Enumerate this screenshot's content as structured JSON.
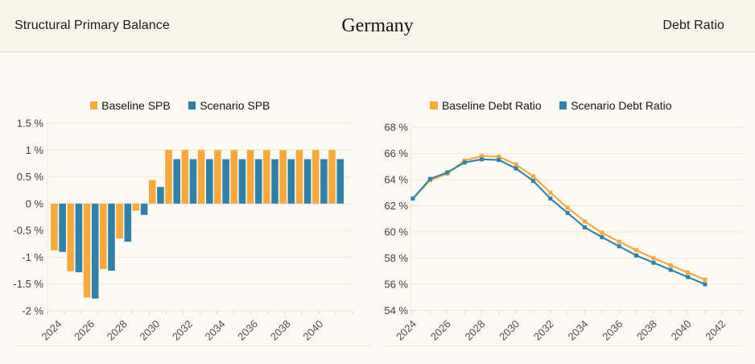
{
  "header": {
    "left_title": "Structural Primary Balance",
    "center_title": "Germany",
    "right_title": "Debt Ratio"
  },
  "palette": {
    "baseline": "#F8A93A",
    "scenario": "#2F81AA",
    "background": "#FDFAF3",
    "header_background": "#FAF4EB",
    "divider": "#DBD7CB",
    "grid": "#EBE7DA",
    "axis_text": "#3D3D3D",
    "tick_text": "#4D4D4D",
    "legend_text": "#141414"
  },
  "chart_data": [
    {
      "type": "bar",
      "title": "Structural Primary Balance",
      "categories": [
        2024,
        2025,
        2026,
        2027,
        2028,
        2029,
        2030,
        2031,
        2032,
        2033,
        2034,
        2035,
        2036,
        2037,
        2038,
        2039,
        2040,
        2041
      ],
      "series": [
        {
          "name": "Baseline SPB",
          "color_key": "baseline",
          "values": [
            -0.87,
            -1.26,
            -1.75,
            -1.22,
            -0.65,
            -0.13,
            0.44,
            1.0,
            1.0,
            1.0,
            1.0,
            1.0,
            1.0,
            1.0,
            1.0,
            1.0,
            1.0,
            1.0
          ]
        },
        {
          "name": "Scenario SPB",
          "color_key": "scenario",
          "values": [
            -0.9,
            -1.28,
            -1.77,
            -1.25,
            -0.71,
            -0.21,
            0.31,
            0.83,
            0.83,
            0.83,
            0.83,
            0.83,
            0.83,
            0.83,
            0.83,
            0.83,
            0.83,
            0.83
          ]
        }
      ],
      "ylim": [
        -2,
        1.5
      ],
      "yticks": [
        {
          "v": 1.5,
          "label": "1.5 %"
        },
        {
          "v": 1,
          "label": "1 %"
        },
        {
          "v": 0.5,
          "label": "0.5 %"
        },
        {
          "v": 0,
          "label": "0 %"
        },
        {
          "v": -0.5,
          "label": "-0.5 %"
        },
        {
          "v": -1,
          "label": "-1 %"
        },
        {
          "v": -1.5,
          "label": "-1.5 %"
        },
        {
          "v": -2,
          "label": "-2 %"
        }
      ],
      "xticks": [
        {
          "v": 2024,
          "label": "2024"
        },
        {
          "v": 2026,
          "label": "2026"
        },
        {
          "v": 2028,
          "label": "2028"
        },
        {
          "v": 2030,
          "label": "2030"
        },
        {
          "v": 2032,
          "label": "2032"
        },
        {
          "v": 2034,
          "label": "2034"
        },
        {
          "v": 2036,
          "label": "2036"
        },
        {
          "v": 2038,
          "label": "2038"
        },
        {
          "v": 2040,
          "label": "2040"
        }
      ],
      "grid": true,
      "legend_position": "top"
    },
    {
      "type": "line",
      "title": "Debt Ratio",
      "x": [
        2024,
        2025,
        2026,
        2027,
        2028,
        2029,
        2030,
        2031,
        2032,
        2033,
        2034,
        2035,
        2036,
        2037,
        2038,
        2039,
        2040,
        2041
      ],
      "series": [
        {
          "name": "Baseline Debt Ratio",
          "color_key": "baseline",
          "values": [
            62.55,
            63.95,
            64.45,
            65.45,
            65.8,
            65.75,
            65.15,
            64.25,
            63.0,
            61.85,
            60.8,
            59.95,
            59.25,
            58.6,
            58.0,
            57.45,
            56.9,
            56.35
          ]
        },
        {
          "name": "Scenario Debt Ratio",
          "color_key": "scenario",
          "values": [
            62.55,
            64.05,
            64.55,
            65.3,
            65.55,
            65.5,
            64.85,
            63.9,
            62.55,
            61.45,
            60.35,
            59.6,
            58.9,
            58.2,
            57.65,
            57.1,
            56.55,
            56.0
          ]
        }
      ],
      "ylim": [
        54,
        68
      ],
      "yticks": [
        {
          "v": 68,
          "label": "68 %"
        },
        {
          "v": 66,
          "label": "66 %"
        },
        {
          "v": 64,
          "label": "64 %"
        },
        {
          "v": 62,
          "label": "62 %"
        },
        {
          "v": 60,
          "label": "60 %"
        },
        {
          "v": 58,
          "label": "58 %"
        },
        {
          "v": 56,
          "label": "56 %"
        },
        {
          "v": 54,
          "label": "54 %"
        }
      ],
      "xticks": [
        {
          "v": 2024,
          "label": "2024"
        },
        {
          "v": 2026,
          "label": "2026"
        },
        {
          "v": 2028,
          "label": "2028"
        },
        {
          "v": 2030,
          "label": "2030"
        },
        {
          "v": 2032,
          "label": "2032"
        },
        {
          "v": 2034,
          "label": "2034"
        },
        {
          "v": 2036,
          "label": "2036"
        },
        {
          "v": 2038,
          "label": "2038"
        },
        {
          "v": 2040,
          "label": "2040"
        },
        {
          "v": 2042,
          "label": "2042"
        }
      ],
      "grid": true,
      "legend_position": "top"
    }
  ]
}
